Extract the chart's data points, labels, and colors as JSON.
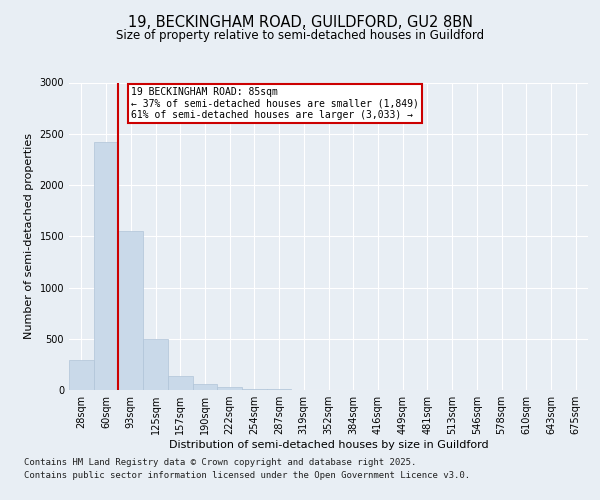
{
  "title_line1": "19, BECKINGHAM ROAD, GUILDFORD, GU2 8BN",
  "title_line2": "Size of property relative to semi-detached houses in Guildford",
  "xlabel": "Distribution of semi-detached houses by size in Guildford",
  "ylabel": "Number of semi-detached properties",
  "bins": [
    "28sqm",
    "60sqm",
    "93sqm",
    "125sqm",
    "157sqm",
    "190sqm",
    "222sqm",
    "254sqm",
    "287sqm",
    "319sqm",
    "352sqm",
    "384sqm",
    "416sqm",
    "449sqm",
    "481sqm",
    "513sqm",
    "546sqm",
    "578sqm",
    "610sqm",
    "643sqm",
    "675sqm"
  ],
  "values": [
    290,
    2420,
    1550,
    500,
    140,
    60,
    30,
    10,
    5,
    3,
    2,
    1,
    1,
    1,
    0,
    0,
    0,
    0,
    0,
    0,
    0
  ],
  "bar_color": "#c9d9e9",
  "bar_edge_color": "#b0c4d8",
  "vline_color": "#cc0000",
  "annotation_box_color": "#cc0000",
  "annotation_text_line1": "19 BECKINGHAM ROAD: 85sqm",
  "annotation_text_line2": "← 37% of semi-detached houses are smaller (1,849)",
  "annotation_text_line3": "61% of semi-detached houses are larger (3,033) →",
  "ylim": [
    0,
    3000
  ],
  "yticks": [
    0,
    500,
    1000,
    1500,
    2000,
    2500,
    3000
  ],
  "footer_line1": "Contains HM Land Registry data © Crown copyright and database right 2025.",
  "footer_line2": "Contains public sector information licensed under the Open Government Licence v3.0.",
  "background_color": "#e8eef4",
  "plot_bg_color": "#e8eef4",
  "title1_fontsize": 10.5,
  "title2_fontsize": 8.5,
  "axis_label_fontsize": 8,
  "tick_fontsize": 7,
  "footer_fontsize": 6.5
}
